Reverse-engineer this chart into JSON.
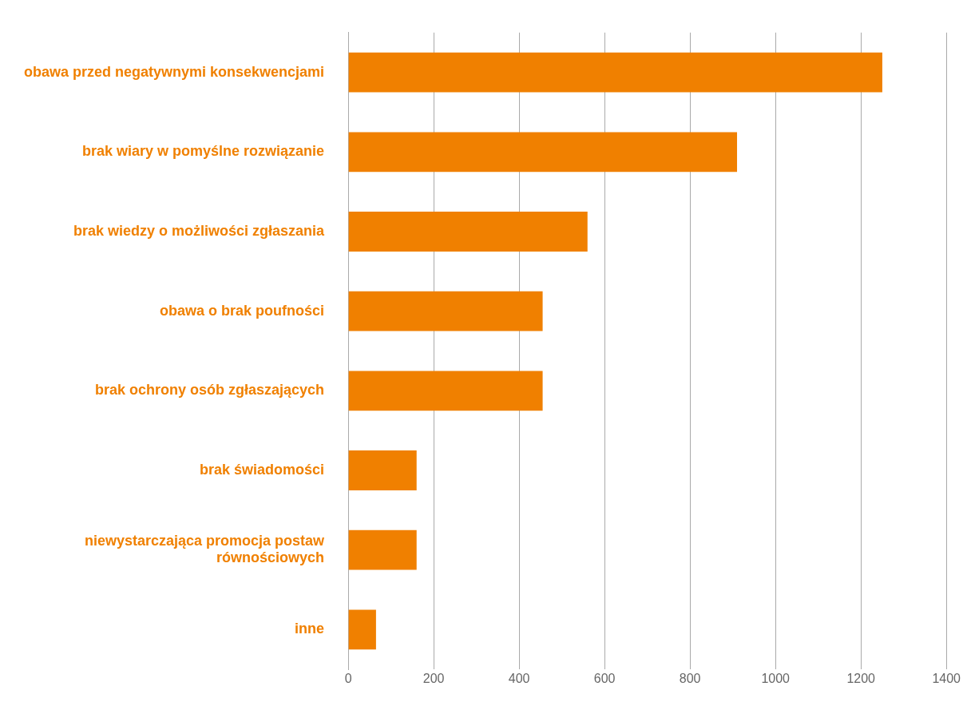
{
  "chart_data": {
    "type": "bar",
    "orientation": "horizontal",
    "categories": [
      "obawa przed negatywnymi konsekwencjami",
      "brak wiary w pomyślne rozwiązanie",
      "brak wiedzy o możliwości zgłaszania",
      "obawa o brak poufności",
      "brak ochrony osób zgłaszających",
      "brak świadomości",
      "niewystarczająca promocja postaw równościowych",
      "inne"
    ],
    "values": [
      1250,
      910,
      560,
      455,
      455,
      160,
      160,
      65
    ],
    "color": "#f08000",
    "xlim": [
      0,
      1400
    ],
    "xticks": [
      0,
      200,
      400,
      600,
      800,
      1000,
      1200,
      1400
    ],
    "grid": "x"
  }
}
